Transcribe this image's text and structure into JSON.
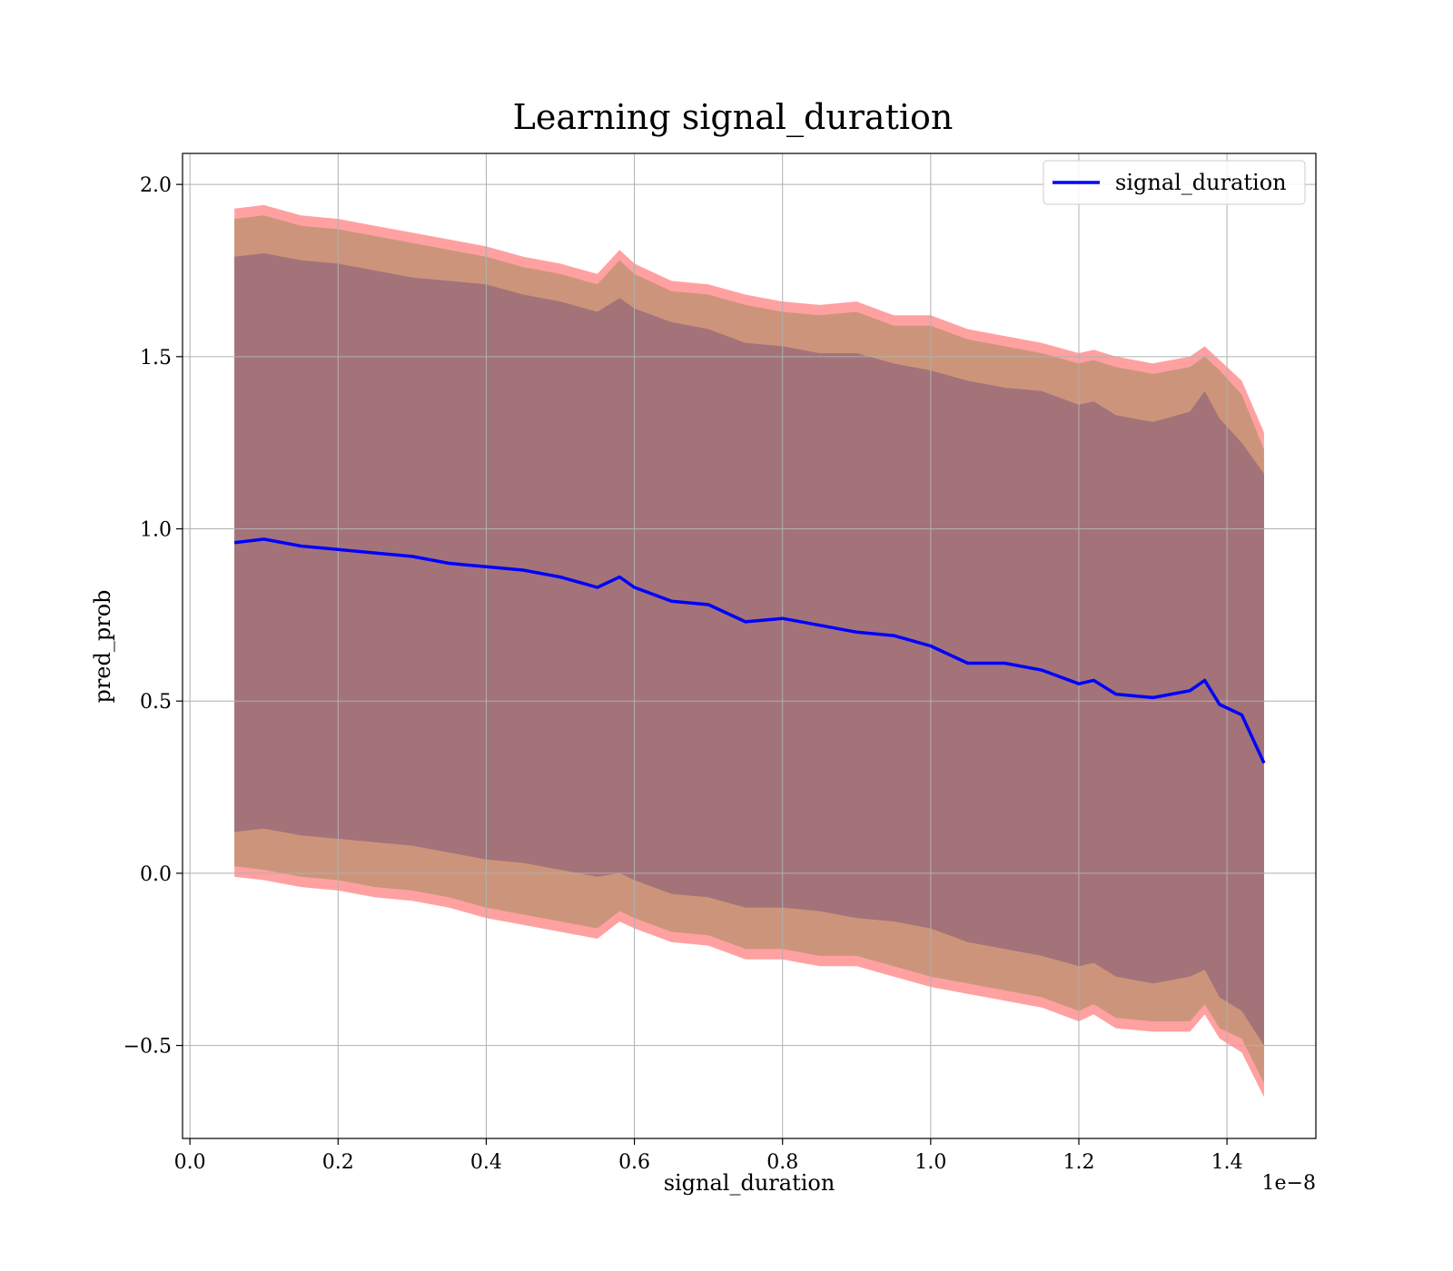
{
  "chart_data": {
    "type": "line",
    "title": "Learning signal_duration",
    "xlabel": "signal_duration",
    "ylabel": "pred_prob",
    "x_offset_label": "1e−8",
    "xlim": [
      -0.01,
      1.52
    ],
    "ylim": [
      -0.77,
      2.09
    ],
    "grid": true,
    "legend": {
      "placement": "top-right",
      "entries": [
        "signal_duration"
      ]
    },
    "x_ticks": [
      0.0,
      0.2,
      0.4,
      0.6,
      0.8,
      1.0,
      1.2,
      1.4
    ],
    "x_tick_labels": [
      "0.0",
      "0.2",
      "0.4",
      "0.6",
      "0.8",
      "1.0",
      "1.2",
      "1.4"
    ],
    "y_ticks": [
      -0.5,
      0.0,
      0.5,
      1.0,
      1.5,
      2.0
    ],
    "y_tick_labels": [
      "−0.5",
      "0.0",
      "0.5",
      "1.0",
      "1.5",
      "2.0"
    ],
    "colors": {
      "line": "#0000ff",
      "outer_band": "#ff9999",
      "middle_band": "#c89477",
      "inner_band": "#a07078",
      "grid": "#b0b0b0"
    },
    "series": [
      {
        "name": "signal_duration",
        "x": [
          0.06,
          0.1,
          0.15,
          0.2,
          0.25,
          0.3,
          0.35,
          0.4,
          0.45,
          0.5,
          0.55,
          0.58,
          0.6,
          0.65,
          0.7,
          0.75,
          0.8,
          0.85,
          0.9,
          0.95,
          1.0,
          1.05,
          1.1,
          1.15,
          1.2,
          1.22,
          1.25,
          1.3,
          1.35,
          1.37,
          1.39,
          1.42,
          1.45
        ],
        "y": [
          0.96,
          0.97,
          0.95,
          0.94,
          0.93,
          0.92,
          0.9,
          0.89,
          0.88,
          0.86,
          0.83,
          0.86,
          0.83,
          0.79,
          0.78,
          0.73,
          0.74,
          0.72,
          0.7,
          0.69,
          0.66,
          0.61,
          0.61,
          0.59,
          0.55,
          0.56,
          0.52,
          0.51,
          0.53,
          0.56,
          0.49,
          0.46,
          0.32
        ]
      }
    ],
    "bands": [
      {
        "role": "outer",
        "x": [
          0.06,
          0.1,
          0.15,
          0.2,
          0.25,
          0.3,
          0.35,
          0.4,
          0.45,
          0.5,
          0.55,
          0.58,
          0.6,
          0.65,
          0.7,
          0.75,
          0.8,
          0.85,
          0.9,
          0.95,
          1.0,
          1.05,
          1.1,
          1.15,
          1.2,
          1.22,
          1.25,
          1.3,
          1.35,
          1.37,
          1.39,
          1.42,
          1.45
        ],
        "upper": [
          1.93,
          1.94,
          1.91,
          1.9,
          1.88,
          1.86,
          1.84,
          1.82,
          1.79,
          1.77,
          1.74,
          1.81,
          1.77,
          1.72,
          1.71,
          1.68,
          1.66,
          1.65,
          1.66,
          1.62,
          1.62,
          1.58,
          1.56,
          1.54,
          1.51,
          1.52,
          1.5,
          1.48,
          1.5,
          1.53,
          1.49,
          1.43,
          1.28
        ],
        "lower": [
          -0.01,
          -0.02,
          -0.04,
          -0.05,
          -0.07,
          -0.08,
          -0.1,
          -0.13,
          -0.15,
          -0.17,
          -0.19,
          -0.14,
          -0.16,
          -0.2,
          -0.21,
          -0.25,
          -0.25,
          -0.27,
          -0.27,
          -0.3,
          -0.33,
          -0.35,
          -0.37,
          -0.39,
          -0.43,
          -0.41,
          -0.45,
          -0.46,
          -0.46,
          -0.41,
          -0.48,
          -0.52,
          -0.65
        ]
      },
      {
        "role": "middle",
        "x": [
          0.06,
          0.1,
          0.15,
          0.2,
          0.25,
          0.3,
          0.35,
          0.4,
          0.45,
          0.5,
          0.55,
          0.58,
          0.6,
          0.65,
          0.7,
          0.75,
          0.8,
          0.85,
          0.9,
          0.95,
          1.0,
          1.05,
          1.1,
          1.15,
          1.2,
          1.22,
          1.25,
          1.3,
          1.35,
          1.37,
          1.39,
          1.42,
          1.45
        ],
        "upper": [
          1.9,
          1.91,
          1.88,
          1.87,
          1.85,
          1.83,
          1.81,
          1.79,
          1.76,
          1.74,
          1.71,
          1.78,
          1.74,
          1.69,
          1.68,
          1.65,
          1.63,
          1.62,
          1.63,
          1.59,
          1.59,
          1.55,
          1.53,
          1.51,
          1.48,
          1.49,
          1.47,
          1.45,
          1.47,
          1.5,
          1.46,
          1.39,
          1.23
        ],
        "lower": [
          0.02,
          0.01,
          -0.01,
          -0.02,
          -0.04,
          -0.05,
          -0.07,
          -0.1,
          -0.12,
          -0.14,
          -0.16,
          -0.11,
          -0.13,
          -0.17,
          -0.18,
          -0.22,
          -0.22,
          -0.24,
          -0.24,
          -0.27,
          -0.3,
          -0.32,
          -0.34,
          -0.36,
          -0.4,
          -0.38,
          -0.42,
          -0.43,
          -0.43,
          -0.38,
          -0.45,
          -0.48,
          -0.61
        ]
      },
      {
        "role": "inner",
        "x": [
          0.06,
          0.1,
          0.15,
          0.2,
          0.25,
          0.3,
          0.35,
          0.4,
          0.45,
          0.5,
          0.55,
          0.58,
          0.6,
          0.65,
          0.7,
          0.75,
          0.8,
          0.85,
          0.9,
          0.95,
          1.0,
          1.05,
          1.1,
          1.15,
          1.2,
          1.22,
          1.25,
          1.3,
          1.35,
          1.37,
          1.39,
          1.42,
          1.45
        ],
        "upper": [
          1.79,
          1.8,
          1.78,
          1.77,
          1.75,
          1.73,
          1.72,
          1.71,
          1.68,
          1.66,
          1.63,
          1.67,
          1.64,
          1.6,
          1.58,
          1.54,
          1.53,
          1.51,
          1.51,
          1.48,
          1.46,
          1.43,
          1.41,
          1.4,
          1.36,
          1.37,
          1.33,
          1.31,
          1.34,
          1.4,
          1.32,
          1.25,
          1.16
        ],
        "lower": [
          0.12,
          0.13,
          0.11,
          0.1,
          0.09,
          0.08,
          0.06,
          0.04,
          0.03,
          0.01,
          -0.01,
          0.0,
          -0.02,
          -0.06,
          -0.07,
          -0.1,
          -0.1,
          -0.11,
          -0.13,
          -0.14,
          -0.16,
          -0.2,
          -0.22,
          -0.24,
          -0.27,
          -0.26,
          -0.3,
          -0.32,
          -0.3,
          -0.28,
          -0.36,
          -0.4,
          -0.5
        ]
      }
    ]
  }
}
